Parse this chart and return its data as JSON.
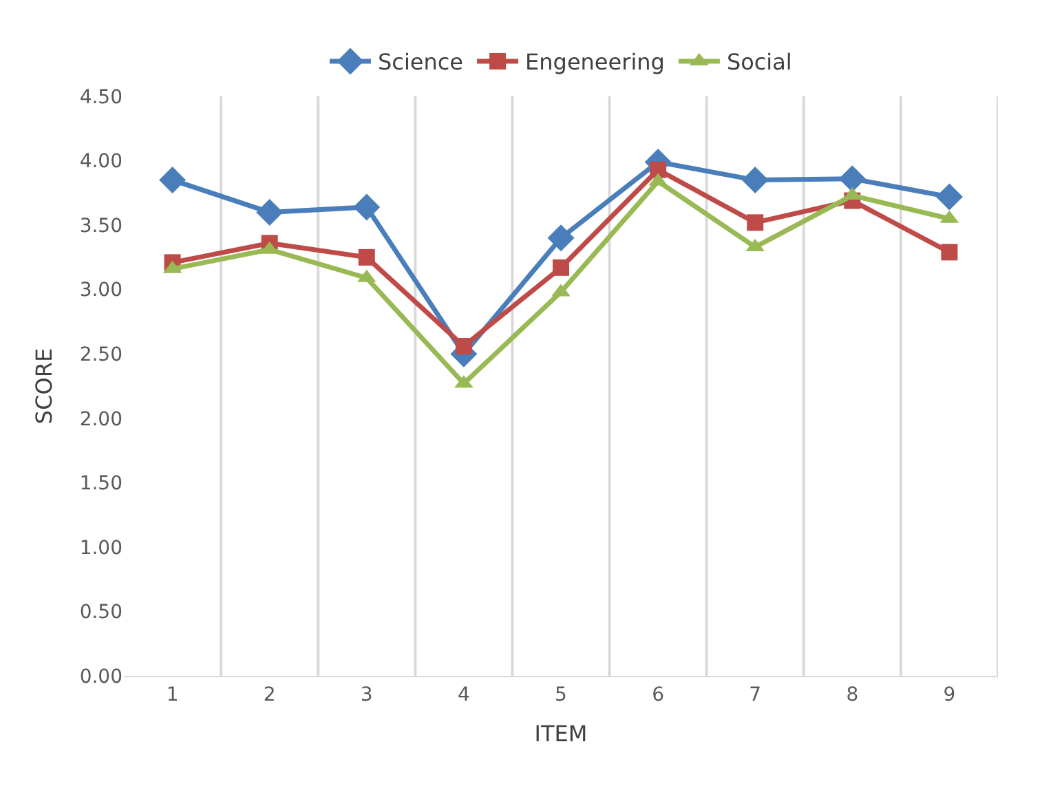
{
  "chart_data": {
    "type": "line",
    "xlabel": "ITEM",
    "ylabel": "SCORE",
    "categories": [
      "1",
      "2",
      "3",
      "4",
      "5",
      "6",
      "7",
      "8",
      "9"
    ],
    "series": [
      {
        "name": "Science",
        "color": "#4a7ebb",
        "marker": "diamond",
        "values": [
          3.85,
          3.6,
          3.64,
          2.5,
          3.4,
          3.99,
          3.85,
          3.86,
          3.72
        ]
      },
      {
        "name": "Engeneering",
        "color": "#be4b48",
        "marker": "square",
        "values": [
          3.21,
          3.36,
          3.25,
          2.56,
          3.17,
          3.93,
          3.52,
          3.69,
          3.29
        ]
      },
      {
        "name": "Social",
        "color": "#98b954",
        "marker": "triangle",
        "values": [
          3.16,
          3.31,
          3.09,
          2.27,
          2.98,
          3.84,
          3.33,
          3.73,
          3.55
        ]
      }
    ],
    "ylim": [
      0,
      4.5
    ],
    "yticks": [
      {
        "value": 0,
        "label": "0.00"
      },
      {
        "value": 0.5,
        "label": "0.50"
      },
      {
        "value": 1,
        "label": "1.00"
      },
      {
        "value": 1.5,
        "label": "1.50"
      },
      {
        "value": 2,
        "label": "2.00"
      },
      {
        "value": 2.5,
        "label": "2.50"
      },
      {
        "value": 3,
        "label": "3.00"
      },
      {
        "value": 3.5,
        "label": "3.50"
      },
      {
        "value": 4,
        "label": "4.00"
      },
      {
        "value": 4.5,
        "label": "4.50"
      }
    ],
    "grid": "x",
    "legend": "top",
    "line_style": "solid"
  }
}
